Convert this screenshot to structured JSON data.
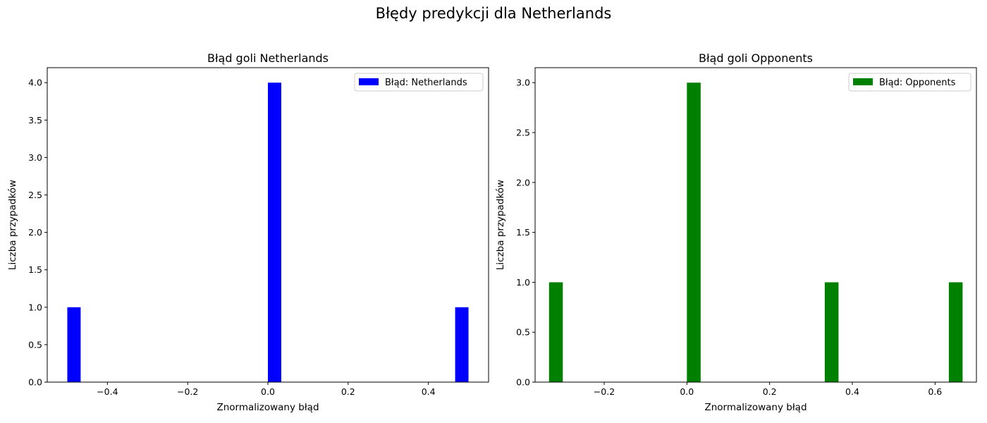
{
  "figure": {
    "suptitle": "Błędy predykcji dla Netherlands"
  },
  "chart_data": [
    {
      "type": "bar",
      "title": "Błąd goli Netherlands",
      "xlabel": "Znormalizowany błąd",
      "ylabel": "Liczba przypadków",
      "xlim": [
        -0.55,
        0.55
      ],
      "ylim": [
        0,
        4.2
      ],
      "xticks": [
        -0.4,
        -0.2,
        0.0,
        0.2,
        0.4
      ],
      "xtick_labels": [
        "−0.4",
        "−0.2",
        "0.0",
        "0.2",
        "0.4"
      ],
      "yticks": [
        0,
        0.5,
        1,
        1.5,
        2,
        2.5,
        3,
        3.5,
        4
      ],
      "ytick_labels": [
        "0.0",
        "0.5",
        "1.0",
        "1.5",
        "2.0",
        "2.5",
        "3.0",
        "3.5",
        "4.0"
      ],
      "bin_width": 0.0333,
      "bars": [
        {
          "x": -0.5,
          "value": 1
        },
        {
          "x": 0.0,
          "value": 4
        },
        {
          "x": 0.4667,
          "value": 1
        }
      ],
      "legend": "Błąd: Netherlands",
      "legend_position": "top-right",
      "color": "#0000ff",
      "grid": false
    },
    {
      "type": "bar",
      "title": "Błąd goli Opponents",
      "xlabel": "Znormalizowany błąd",
      "ylabel": "Liczba przypadków",
      "xlim": [
        -0.367,
        0.7
      ],
      "ylim": [
        0,
        3.15
      ],
      "xticks": [
        -0.2,
        0.0,
        0.2,
        0.4,
        0.6
      ],
      "xtick_labels": [
        "−0.2",
        "0.0",
        "0.2",
        "0.4",
        "0.6"
      ],
      "yticks": [
        0,
        0.5,
        1,
        1.5,
        2,
        2.5,
        3
      ],
      "ytick_labels": [
        "0.0",
        "0.5",
        "1.0",
        "1.5",
        "2.0",
        "2.5",
        "3.0"
      ],
      "bin_width": 0.0333,
      "bars": [
        {
          "x": -0.3333,
          "value": 1
        },
        {
          "x": 0.0,
          "value": 3
        },
        {
          "x": 0.3333,
          "value": 1
        },
        {
          "x": 0.6333,
          "value": 1
        }
      ],
      "legend": "Błąd: Opponents",
      "legend_position": "top-right",
      "color": "#008000",
      "grid": false
    }
  ]
}
